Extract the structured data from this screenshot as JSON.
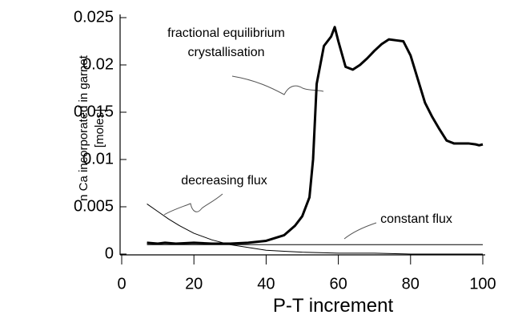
{
  "chart_data": {
    "type": "line",
    "xlabel": "P-T increment",
    "ylabel": "n Ca incorporated in garnet [moles]",
    "xlim": [
      0,
      100
    ],
    "xticks": [
      0,
      20,
      40,
      60,
      80,
      100
    ],
    "ylim": [
      0,
      0.025
    ],
    "yticks": [
      0,
      0.005,
      0.01,
      0.015,
      0.02,
      0.025
    ],
    "series": [
      {
        "name": "fractional equilibrium crystallisation",
        "color": "#000000",
        "x": [
          7,
          10,
          12,
          15,
          20,
          25,
          30,
          35,
          40,
          45,
          48,
          50,
          52,
          53,
          54,
          55,
          56,
          58,
          59,
          60,
          62,
          64,
          66,
          68,
          70,
          72,
          74,
          76,
          78,
          80,
          82,
          84,
          86,
          88,
          90,
          92,
          94,
          96,
          98,
          99,
          100
        ],
        "values": [
          0.0012,
          0.0011,
          0.0012,
          0.0011,
          0.0012,
          0.0011,
          0.0011,
          0.0012,
          0.0014,
          0.002,
          0.003,
          0.004,
          0.006,
          0.01,
          0.018,
          0.02,
          0.022,
          0.023,
          0.024,
          0.0225,
          0.0198,
          0.0195,
          0.02,
          0.0207,
          0.0215,
          0.0222,
          0.0227,
          0.0226,
          0.0225,
          0.021,
          0.0185,
          0.016,
          0.0145,
          0.0132,
          0.012,
          0.0117,
          0.0117,
          0.0117,
          0.0116,
          0.0115,
          0.0116
        ]
      },
      {
        "name": "decreasing flux",
        "color": "#000000",
        "x": [
          7,
          10,
          13,
          16,
          20,
          25,
          30,
          35,
          40,
          45,
          50,
          60,
          70,
          80,
          100
        ],
        "values": [
          0.0053,
          0.0045,
          0.0037,
          0.003,
          0.0022,
          0.0015,
          0.001,
          0.0007,
          0.0004,
          0.0003,
          0.0002,
          0.0001,
          0.0001,
          0,
          0
        ]
      },
      {
        "name": "constant flux",
        "color": "#000000",
        "x": [
          7,
          100
        ],
        "values": [
          0.001,
          0.001
        ]
      }
    ]
  }
}
